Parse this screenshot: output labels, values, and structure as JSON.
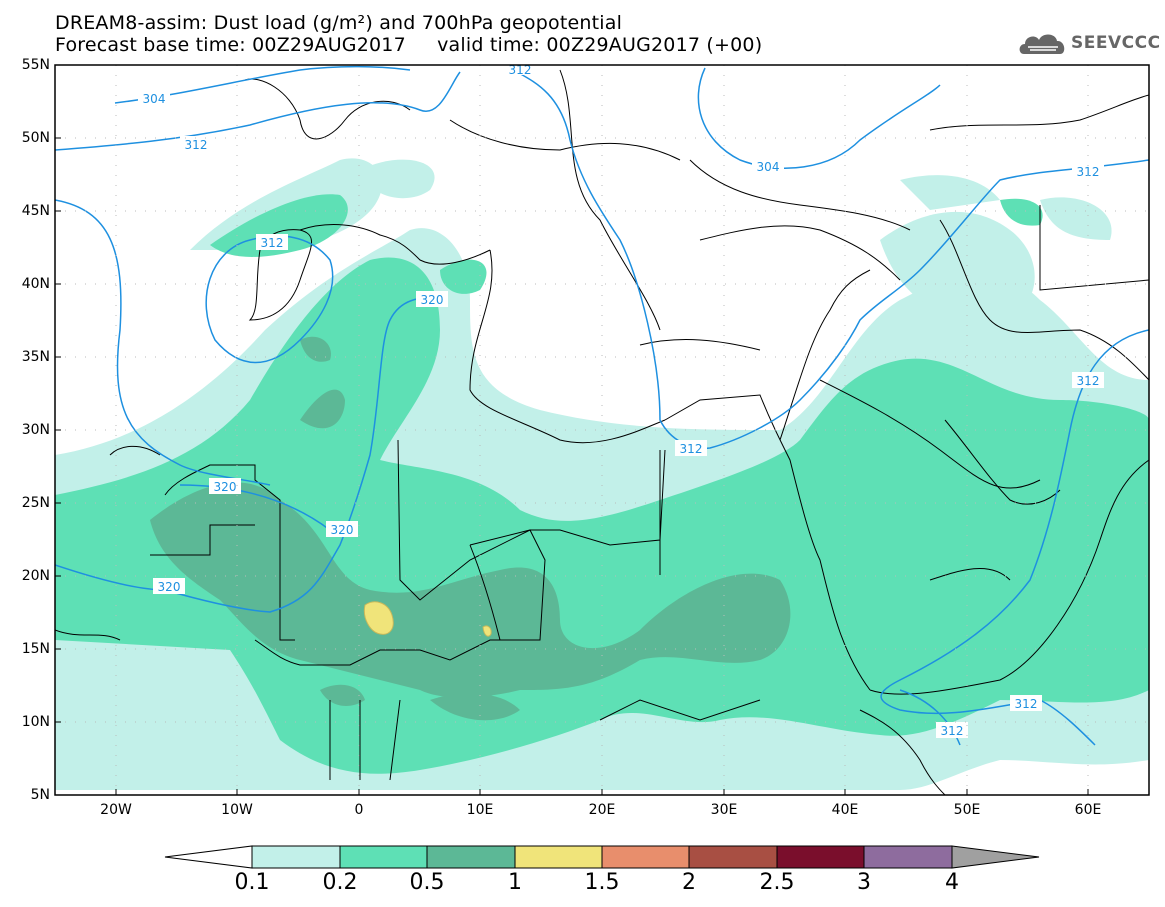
{
  "title_line1": "DREAM8-assim: Dust load (g/m²) and 700hPa geopotential",
  "title_line2": "Forecast base time: 00Z29AUG2017     valid time: 00Z29AUG2017 (+00)",
  "logo_text": "SEEVCCC",
  "lat_labels": [
    "55N",
    "50N",
    "45N",
    "40N",
    "35N",
    "30N",
    "25N",
    "20N",
    "15N",
    "10N",
    "5N"
  ],
  "lon_labels": [
    "20W",
    "10W",
    "0",
    "10E",
    "20E",
    "30E",
    "40E",
    "50E",
    "60E"
  ],
  "contour_labels": [
    "304",
    "312",
    "312",
    "320",
    "320",
    "320",
    "320",
    "312",
    "304",
    "312",
    "312",
    "312",
    "312",
    "312"
  ],
  "colorbar_labels": [
    "0.1",
    "0.2",
    "0.5",
    "1",
    "1.5",
    "2",
    "2.5",
    "3",
    "4"
  ],
  "colorbar_colors": [
    "#c2f0e9",
    "#5ee0b5",
    "#5cb896",
    "#f0e47a",
    "#e88e6c",
    "#a84f43",
    "#7a0e2c",
    "#8e6c9e"
  ]
}
